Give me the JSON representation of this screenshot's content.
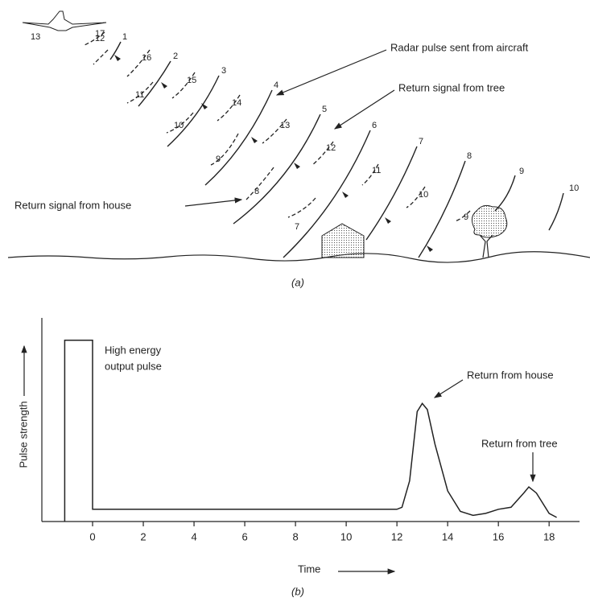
{
  "diagram": {
    "caption": "(a)",
    "annotations": [
      "Radar pulse sent from aircraft",
      "Return signal from tree",
      "Return signal from house"
    ],
    "pulse_labels": [
      "1",
      "2",
      "3",
      "4",
      "5",
      "6",
      "7",
      "8",
      "9",
      "10"
    ],
    "house_return_labels": [
      "13",
      "12",
      "11",
      "10",
      "9",
      "8",
      "7"
    ],
    "tree_return_labels": [
      "17",
      "16",
      "15",
      "14",
      "13",
      "12",
      "11",
      "10",
      "9"
    ]
  },
  "chart_data": {
    "type": "line",
    "caption": "(b)",
    "x_label": "Time",
    "y_label": "Pulse strength",
    "annotations": [
      "High energy",
      "output pulse",
      "Return from house",
      "Return from tree"
    ],
    "x": [
      -1.1,
      -1.1,
      0,
      0,
      2,
      4,
      6,
      8,
      10,
      12,
      12.2,
      12.5,
      12.8,
      13.0,
      13.2,
      13.5,
      14,
      14.5,
      15,
      15.5,
      16,
      16.5,
      17,
      17.2,
      17.5,
      18,
      18.3
    ],
    "series": [
      {
        "color": "#222222",
        "values": [
          0,
          0.89,
          0.89,
          0.06,
          0.06,
          0.06,
          0.06,
          0.06,
          0.06,
          0.06,
          0.07,
          0.2,
          0.54,
          0.58,
          0.55,
          0.38,
          0.15,
          0.05,
          0.03,
          0.04,
          0.06,
          0.07,
          0.14,
          0.17,
          0.14,
          0.04,
          0.02
        ]
      }
    ],
    "xlim": [
      -2,
      19.2
    ],
    "ylim": [
      0,
      1
    ],
    "xticks": [
      0,
      2,
      4,
      6,
      8,
      10,
      12,
      14,
      16,
      18
    ]
  }
}
